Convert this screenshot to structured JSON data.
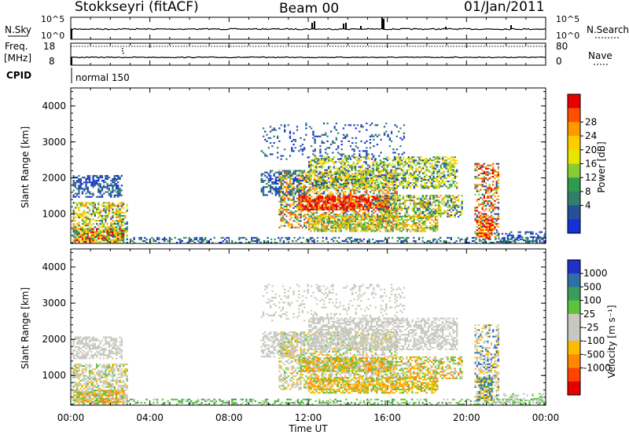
{
  "header": {
    "station": "Stokkseyri (fitACF)",
    "beam": "Beam 00",
    "date": "01/Jan/2011"
  },
  "strip_panels": {
    "nsky": {
      "left_label": "N.Sky",
      "right_label": "N.Search",
      "left_ticks": [
        "10^5",
        "10^0"
      ],
      "right_ticks": [
        "10^5",
        "10^0"
      ]
    },
    "freq": {
      "left_label": "Freq.",
      "unit": "[MHz]",
      "right_label": "Nave",
      "left_ticks": [
        "18",
        "8"
      ],
      "right_ticks": [
        "80",
        "0"
      ]
    },
    "cpid": {
      "label": "CPID",
      "program": "normal 150"
    }
  },
  "chart_data": [
    {
      "type": "heatmap",
      "panel": "power",
      "ylabel": "Slant Range [km]",
      "xlabel": "",
      "colorbar_label": "Power [dB]",
      "colorbar_ticks": [
        "28",
        "24",
        "20",
        "16",
        "12",
        "8",
        "4"
      ],
      "colorbar_colors": [
        "#e60000",
        "#ff5000",
        "#ff9900",
        "#ffcc00",
        "#e6e600",
        "#88cc33",
        "#2e9b4f",
        "#2f7f6b",
        "#274f95",
        "#1530d8"
      ],
      "yticks": [
        "4000",
        "3000",
        "2000",
        "1000"
      ],
      "ylim": [
        180,
        4500
      ],
      "xlim": [
        "00:00",
        "24:00"
      ]
    },
    {
      "type": "heatmap",
      "panel": "velocity",
      "ylabel": "Slant Range [km]",
      "xlabel": "Time UT",
      "colorbar_label": "Velocity [m s⁻¹]",
      "colorbar_ticks": [
        "1000",
        "500",
        "100",
        "25",
        "-25",
        "-100",
        "-500",
        "-1000"
      ],
      "colorbar_colors": [
        "#2030c8",
        "#2e6fa8",
        "#3a9c5c",
        "#5ec33c",
        "#c8c8c0",
        "#c8c8c0",
        "#ffbb00",
        "#ff8800",
        "#ff4400",
        "#e60000"
      ],
      "yticks": [
        "4000",
        "3000",
        "2000",
        "1000"
      ],
      "xticks": [
        "00:00",
        "04:00",
        "08:00",
        "12:00",
        "16:00",
        "20:00",
        "00:00"
      ],
      "ylim": [
        180,
        4500
      ],
      "xlim": [
        "00:00",
        "24:00"
      ]
    }
  ]
}
